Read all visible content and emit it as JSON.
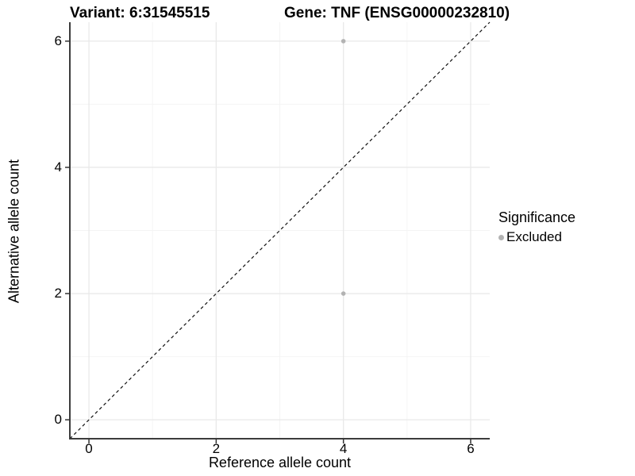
{
  "chart_data": {
    "type": "scatter",
    "title_left": "Variant: 6:31545515",
    "title_right": "Gene: TNF (ENSG00000232810)",
    "xlabel": "Reference allele count",
    "ylabel": "Alternative allele count",
    "x_ticks": [
      0,
      2,
      4,
      6
    ],
    "y_ticks": [
      0,
      2,
      4,
      6
    ],
    "x_minor_ticks": [
      1,
      3,
      5
    ],
    "y_minor_ticks": [
      1,
      3,
      5
    ],
    "xlim": [
      -0.3,
      6.3
    ],
    "ylim": [
      -0.3,
      6.3
    ],
    "grid": true,
    "points": [
      {
        "x": 4,
        "y": 6,
        "significance": "Excluded"
      },
      {
        "x": 4,
        "y": 2,
        "significance": "Excluded"
      }
    ],
    "identity_line": {
      "style": "dashed",
      "from": [
        -0.3,
        -0.3
      ],
      "to": [
        6.3,
        6.3
      ]
    },
    "legend": {
      "position": "right",
      "title": "Significance",
      "items": [
        {
          "label": "Excluded",
          "color": "#b3b3b3"
        }
      ]
    },
    "colors": {
      "point": "#b3b3b3",
      "grid_major": "#e9e9e9",
      "grid_minor": "#f4f4f4",
      "axis_line": "#3c3c3c",
      "tick_mark": "#333333",
      "dashed_line": "#111111",
      "background": "#ffffff"
    }
  }
}
